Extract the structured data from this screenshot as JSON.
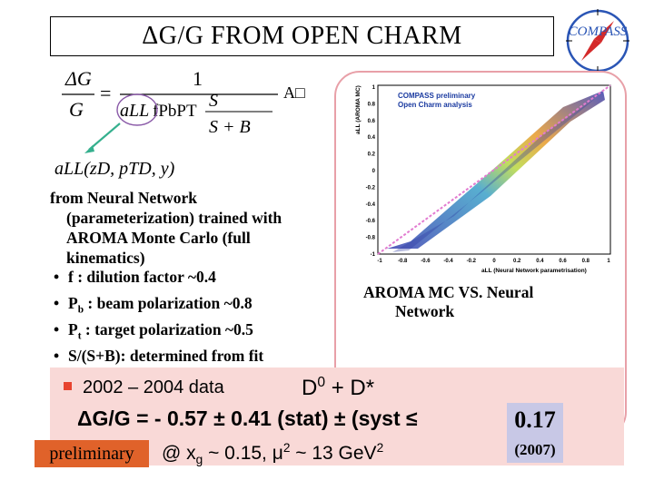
{
  "slide": {
    "title": "ΔG/G FROM OPEN CHARM",
    "logo_text": "COMPASS"
  },
  "formula": {
    "lhs_num": "ΔG",
    "lhs_den": "G",
    "equals": "=",
    "rhs_num": "1",
    "a_ll": "aLL",
    "fpbpt": "fPbPT",
    "s_num": "S",
    "s_den": "S + B",
    "a_term": "A□",
    "dependency": "aLL(zD, pTD, y)"
  },
  "nn_text": {
    "line1": "from Neural Network",
    "line2": "(parameterization)  trained with",
    "line3": "AROMA Monte Carlo (full",
    "line4": "kinematics)"
  },
  "bullets": [
    {
      "dot": "•",
      "sym": "f",
      "sub": "",
      "text": " : dilution factor ~0.4"
    },
    {
      "dot": "•",
      "sym": "P",
      "sub": "b",
      "text": " : beam polarization ~0.8"
    },
    {
      "dot": "•",
      "sym": "P",
      "sub": "t",
      "text": " : target polarization ~0.5"
    },
    {
      "dot": "•",
      "sym": "S/(S+B)",
      "sub": "",
      "text": ": determined from fit"
    }
  ],
  "plot": {
    "header1": "COMPASS preliminary",
    "header2": "Open Charm analysis",
    "ylabel": "aLL (AROMA MC)",
    "xlabel": "aLL (Neural Network parametrisation)",
    "yticks": [
      "1",
      "0.8",
      "0.6",
      "0.4",
      "0.2",
      "0",
      "-0.2",
      "-0.4",
      "-0.6",
      "-0.8",
      "-1"
    ],
    "xticks": [
      "-1",
      "-0.8",
      "-0.6",
      "-0.4",
      "-0.2",
      "0",
      "0.2",
      "0.4",
      "0.6",
      "0.8",
      "1"
    ]
  },
  "plot_caption": {
    "line1": "AROMA MC  VS. Neural",
    "line2": "Network"
  },
  "result": {
    "years": "2002 – 2004  data",
    "channel_d": "D",
    "channel_sup": "0",
    "channel_rest": " + D*",
    "dg_text": "ΔG/G = - 0.57 ± 0.41 (stat) ± (syst  ≤",
    "syst_value": "0.17",
    "syst_year": "(2007)",
    "preliminary": "preliminary",
    "kin_prefix": "@ x",
    "kin_sub": "g",
    "kin_mid": " ~ 0.15, μ",
    "kin_sup": "2",
    "kin_mid2": " ~ 13 GeV",
    "kin_sup2": "2"
  },
  "colors": {
    "result_bg": "#f9d9d7",
    "preliminary_bg": "#e0622a",
    "syst_bg": "#c8c8e6",
    "frame": "#e8a0a8",
    "bullet_square": "#e8432f"
  }
}
